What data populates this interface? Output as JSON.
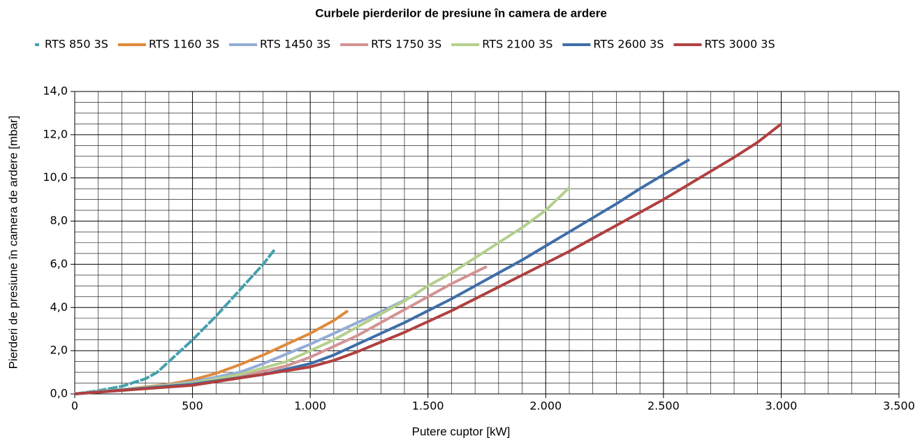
{
  "chart_data": {
    "type": "line",
    "title": "Curbele pierderilor de presiune în camera de ardere",
    "xlabel": "Putere cuptor [kW]",
    "ylabel": "Pierderi de presiune în camera de ardere [mbar]",
    "xlim": [
      0,
      3500
    ],
    "xticks": [
      0,
      500,
      {
        "value": 1000,
        "label": "1.000"
      },
      {
        "value": 1500,
        "label": "1.500"
      },
      {
        "value": 2000,
        "label": "2.000"
      },
      {
        "value": 2500,
        "label": "2.500"
      },
      {
        "value": 3000,
        "label": "3.000"
      },
      {
        "value": 3500,
        "label": "3.500"
      }
    ],
    "ylim": [
      0,
      14
    ],
    "yticks": [
      {
        "value": 0,
        "label": "0,0"
      },
      {
        "value": 2,
        "label": "2,0"
      },
      {
        "value": 4,
        "label": "4,0"
      },
      {
        "value": 6,
        "label": "6,0"
      },
      {
        "value": 8,
        "label": "8,0"
      },
      {
        "value": 10,
        "label": "10,0"
      },
      {
        "value": 12,
        "label": "12,0"
      },
      {
        "value": 14,
        "label": "14,0"
      }
    ],
    "grid": true,
    "minor_grid": {
      "x": 5,
      "y": 4
    },
    "legend": "top",
    "series": [
      {
        "name": "RTS 850 3S",
        "color": "#45a0ad",
        "line_style": "dashed",
        "x": [
          0,
          100,
          200,
          300,
          350,
          400,
          500,
          600,
          700,
          800,
          850
        ],
        "values": [
          0,
          0.15,
          0.35,
          0.7,
          1.0,
          1.5,
          2.5,
          3.6,
          4.8,
          6.0,
          6.7
        ]
      },
      {
        "name": "RTS 1160 3S",
        "color": "#e08a3c",
        "x": [
          0,
          200,
          400,
          500,
          600,
          700,
          800,
          900,
          1000,
          1100,
          1160
        ],
        "values": [
          0,
          0.2,
          0.45,
          0.65,
          0.95,
          1.35,
          1.8,
          2.3,
          2.8,
          3.4,
          3.85
        ]
      },
      {
        "name": "RTS 1450 3S",
        "color": "#94acd6",
        "x": [
          0,
          300,
          500,
          700,
          800,
          900,
          1000,
          1100,
          1200,
          1300,
          1450
        ],
        "values": [
          0,
          0.3,
          0.55,
          1.0,
          1.4,
          1.85,
          2.3,
          2.8,
          3.3,
          3.8,
          4.6
        ]
      },
      {
        "name": "RTS 1750 3S",
        "color": "#d49393",
        "x": [
          0,
          500,
          700,
          900,
          1000,
          1100,
          1200,
          1300,
          1400,
          1500,
          1600,
          1750
        ],
        "values": [
          0,
          0.5,
          0.8,
          1.3,
          1.7,
          2.2,
          2.7,
          3.3,
          3.9,
          4.5,
          5.1,
          5.9
        ]
      },
      {
        "name": "RTS 2100 3S",
        "color": "#b5cf8d",
        "x": [
          0,
          500,
          700,
          900,
          1000,
          1100,
          1200,
          1300,
          1400,
          1500,
          1600,
          1700,
          1800,
          1900,
          2000,
          2100
        ],
        "values": [
          0,
          0.5,
          0.9,
          1.5,
          2.0,
          2.5,
          3.1,
          3.7,
          4.3,
          5.0,
          5.6,
          6.3,
          7.0,
          7.7,
          8.5,
          9.55
        ]
      },
      {
        "name": "RTS 2600 3S",
        "color": "#3f6ea8",
        "x": [
          0,
          500,
          800,
          1000,
          1100,
          1200,
          1300,
          1400,
          1500,
          1600,
          1700,
          1800,
          1900,
          2000,
          2100,
          2200,
          2300,
          2400,
          2500,
          2610
        ],
        "values": [
          0,
          0.45,
          0.9,
          1.4,
          1.8,
          2.3,
          2.8,
          3.3,
          3.85,
          4.4,
          5.0,
          5.6,
          6.2,
          6.85,
          7.5,
          8.15,
          8.8,
          9.5,
          10.15,
          10.85
        ]
      },
      {
        "name": "RTS 3000 3S",
        "color": "#b04040",
        "x": [
          0,
          500,
          800,
          1000,
          1100,
          1200,
          1300,
          1400,
          1500,
          1600,
          1700,
          1800,
          1900,
          2000,
          2100,
          2200,
          2300,
          2400,
          2500,
          2600,
          2700,
          2800,
          2900,
          3000
        ],
        "values": [
          0,
          0.4,
          0.9,
          1.25,
          1.55,
          1.95,
          2.4,
          2.85,
          3.35,
          3.85,
          4.4,
          4.95,
          5.5,
          6.05,
          6.6,
          7.2,
          7.8,
          8.4,
          9.0,
          9.65,
          10.3,
          10.95,
          11.65,
          12.5
        ]
      }
    ]
  }
}
